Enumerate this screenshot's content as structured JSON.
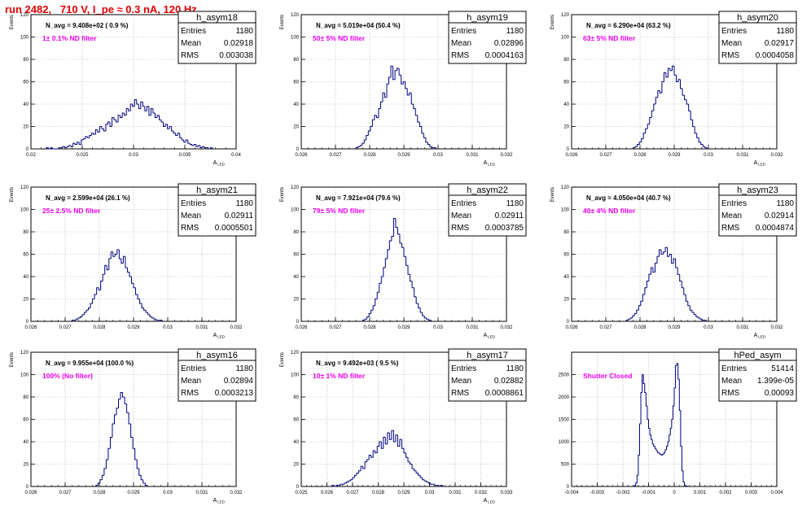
{
  "canvas_title": "run 2482,   710 V, I_pe ≈ 0.3 nA, 120 Hz",
  "chart_data": [
    {
      "type": "bar",
      "name": "h_asym18",
      "ylabel": "Events",
      "xlabel": "A_LED",
      "ylim": [
        0,
        120
      ],
      "xlim": [
        0.02,
        0.04
      ],
      "xticks": [
        "0.02",
        "0.025",
        "0.03",
        "0.035",
        "0.04"
      ],
      "yticks": [
        "0",
        "20",
        "40",
        "60",
        "80",
        "100",
        "120"
      ],
      "stats": {
        "title": "h_asym18",
        "entries": "1180",
        "mean": "0.02918",
        "rms": "0.003038"
      },
      "navg": "N_avg = 9.408e+02 ( 0.9 %)",
      "filter": "1± 0.1% ND filter",
      "bin_start": 0.0215,
      "bin_width": 0.0002,
      "values": [
        1,
        0,
        1,
        0,
        0,
        0,
        1,
        1,
        2,
        1,
        2,
        3,
        2,
        5,
        4,
        6,
        4,
        8,
        9,
        11,
        10,
        12,
        14,
        13,
        17,
        15,
        20,
        18,
        16,
        22,
        24,
        20,
        28,
        26,
        24,
        30,
        28,
        32,
        30,
        36,
        34,
        40,
        38,
        44,
        40,
        36,
        42,
        38,
        34,
        38,
        30,
        36,
        32,
        28,
        30,
        26,
        24,
        20,
        22,
        18,
        20,
        16,
        14,
        12,
        14,
        10,
        8,
        6,
        8,
        5,
        4,
        3,
        4,
        2,
        3,
        1,
        2,
        1,
        1,
        0,
        1
      ]
    },
    {
      "type": "bar",
      "name": "h_asym19",
      "ylabel": "Events",
      "xlabel": "A_LED",
      "ylim": [
        0,
        120
      ],
      "xlim": [
        0.026,
        0.032
      ],
      "xticks": [
        "0.026",
        "0.027",
        "0.028",
        "0.029",
        "0.03",
        "0.031",
        "0.032"
      ],
      "yticks": [
        "0",
        "20",
        "40",
        "60",
        "80",
        "100",
        "120"
      ],
      "stats": {
        "title": "h_asym19",
        "entries": "1180",
        "mean": "0.02896",
        "rms": "0.0004163"
      },
      "navg": "N_avg = 5.019e+04 (50.4 %)",
      "filter": "50± 5% ND filter",
      "bin_start": 0.0276,
      "bin_width": 6e-05,
      "values": [
        1,
        2,
        3,
        5,
        8,
        12,
        16,
        20,
        26,
        30,
        28,
        36,
        42,
        50,
        46,
        58,
        64,
        74,
        62,
        70,
        72,
        66,
        58,
        60,
        54,
        48,
        50,
        40,
        36,
        30,
        24,
        20,
        14,
        10,
        6,
        4,
        2,
        1,
        1
      ]
    },
    {
      "type": "bar",
      "name": "h_asym20",
      "ylabel": "Events",
      "xlabel": "A_LED",
      "ylim": [
        0,
        120
      ],
      "xlim": [
        0.026,
        0.032
      ],
      "xticks": [
        "0.026",
        "0.027",
        "0.028",
        "0.029",
        "0.03",
        "0.031",
        "0.032"
      ],
      "yticks": [
        "0",
        "20",
        "40",
        "60",
        "80",
        "100",
        "120"
      ],
      "stats": {
        "title": "h_asym20",
        "entries": "1180",
        "mean": "0.02917",
        "rms": "0.0004058"
      },
      "navg": "N_avg = 6.290e+04 (63.2 %)",
      "filter": "63± 5% ND filter",
      "bin_start": 0.0278,
      "bin_width": 6e-05,
      "values": [
        1,
        2,
        4,
        6,
        9,
        14,
        18,
        22,
        28,
        34,
        40,
        46,
        52,
        50,
        60,
        68,
        64,
        72,
        70,
        74,
        66,
        60,
        62,
        54,
        48,
        44,
        40,
        34,
        26,
        20,
        14,
        10,
        6,
        4,
        2,
        1
      ]
    },
    {
      "type": "bar",
      "name": "h_asym21",
      "ylabel": "Events",
      "xlabel": "A_LED",
      "ylim": [
        0,
        120
      ],
      "xlim": [
        0.026,
        0.032
      ],
      "xticks": [
        "0.026",
        "0.027",
        "0.028",
        "0.029",
        "0.03",
        "0.031",
        "0.032"
      ],
      "yticks": [
        "0",
        "20",
        "40",
        "60",
        "80",
        "100",
        "120"
      ],
      "stats": {
        "title": "h_asym21",
        "entries": "1180",
        "mean": "0.02911",
        "rms": "0.0005501"
      },
      "navg": "N_avg = 2.599e+04 (26.1 %)",
      "filter": "25± 2.5% ND filter",
      "bin_start": 0.0272,
      "bin_width": 6e-05,
      "values": [
        1,
        1,
        2,
        3,
        4,
        6,
        8,
        10,
        12,
        16,
        20,
        24,
        30,
        28,
        36,
        42,
        50,
        46,
        56,
        62,
        58,
        60,
        64,
        56,
        52,
        58,
        48,
        44,
        40,
        34,
        30,
        24,
        20,
        16,
        12,
        10,
        8,
        6,
        4,
        3,
        2,
        1,
        1,
        1
      ]
    },
    {
      "type": "bar",
      "name": "h_asym22",
      "ylabel": "Events",
      "xlabel": "A_LED",
      "ylim": [
        0,
        120
      ],
      "xlim": [
        0.026,
        0.032
      ],
      "xticks": [
        "0.026",
        "0.027",
        "0.028",
        "0.029",
        "0.03",
        "0.031",
        "0.032"
      ],
      "yticks": [
        "0",
        "20",
        "40",
        "60",
        "80",
        "100",
        "120"
      ],
      "stats": {
        "title": "h_asym22",
        "entries": "1180",
        "mean": "0.02911",
        "rms": "0.0003785"
      },
      "navg": "N_avg = 7.921e+04 (79.6 %)",
      "filter": "79± 5% ND filter",
      "bin_start": 0.0278,
      "bin_width": 6e-05,
      "values": [
        1,
        2,
        4,
        7,
        10,
        14,
        20,
        26,
        34,
        40,
        48,
        56,
        64,
        72,
        76,
        92,
        84,
        78,
        70,
        66,
        58,
        50,
        42,
        36,
        30,
        22,
        16,
        12,
        8,
        5,
        3,
        2,
        1
      ]
    },
    {
      "type": "bar",
      "name": "h_asym23",
      "ylabel": "Events",
      "xlabel": "A_LED",
      "ylim": [
        0,
        120
      ],
      "xlim": [
        0.026,
        0.032
      ],
      "xticks": [
        "0.026",
        "0.027",
        "0.028",
        "0.029",
        "0.03",
        "0.031",
        "0.032"
      ],
      "yticks": [
        "0",
        "20",
        "40",
        "60",
        "80",
        "100",
        "120"
      ],
      "stats": {
        "title": "h_asym23",
        "entries": "1180",
        "mean": "0.02914",
        "rms": "0.0004874"
      },
      "navg": "N_avg = 4.050e+04 (40.7 %)",
      "filter": "40± 4% ND filter",
      "bin_start": 0.0276,
      "bin_width": 6e-05,
      "values": [
        1,
        2,
        3,
        5,
        7,
        10,
        14,
        18,
        24,
        30,
        36,
        42,
        48,
        44,
        52,
        58,
        64,
        60,
        62,
        66,
        58,
        60,
        52,
        56,
        48,
        42,
        36,
        30,
        24,
        18,
        14,
        10,
        8,
        6,
        4,
        3,
        2,
        1,
        1
      ]
    },
    {
      "type": "bar",
      "name": "h_asym16",
      "ylabel": "Events",
      "xlabel": "A_LED",
      "ylim": [
        0,
        120
      ],
      "xlim": [
        0.026,
        0.032
      ],
      "xticks": [
        "0.026",
        "0.027",
        "0.028",
        "0.029",
        "0.03",
        "0.031",
        "0.032"
      ],
      "yticks": [
        "0",
        "20",
        "40",
        "60",
        "80",
        "100",
        "120"
      ],
      "stats": {
        "title": "h_asym16",
        "entries": "1180",
        "mean": "0.02894",
        "rms": "0.0003213"
      },
      "navg": "N_avg = 9.955e+04 (100.0 %)",
      "filter": "100% (No filter)",
      "bin_start": 0.0279,
      "bin_width": 6e-05,
      "values": [
        1,
        3,
        6,
        10,
        16,
        24,
        34,
        44,
        56,
        64,
        70,
        78,
        84,
        80,
        74,
        66,
        56,
        44,
        34,
        24,
        16,
        10,
        6,
        3,
        1
      ]
    },
    {
      "type": "bar",
      "name": "h_asym17",
      "ylabel": "Events",
      "xlabel": "A_LED",
      "ylim": [
        0,
        120
      ],
      "xlim": [
        0.025,
        0.033
      ],
      "xticks": [
        "0.025",
        "0.026",
        "0.027",
        "0.028",
        "0.029",
        "0.03",
        "0.031",
        "0.032",
        "0.033"
      ],
      "yticks": [
        "0",
        "20",
        "40",
        "60",
        "80",
        "100",
        "120"
      ],
      "stats": {
        "title": "h_asym17",
        "entries": "1180",
        "mean": "0.02882",
        "rms": "0.0008861"
      },
      "navg": "N_avg = 9.492e+03 ( 9.5 %)",
      "filter": "10± 1% ND filter",
      "bin_start": 0.0262,
      "bin_width": 8e-05,
      "values": [
        1,
        0,
        1,
        1,
        2,
        2,
        3,
        4,
        5,
        6,
        8,
        10,
        12,
        14,
        18,
        16,
        22,
        24,
        28,
        26,
        32,
        30,
        36,
        40,
        34,
        44,
        38,
        48,
        42,
        50,
        40,
        46,
        36,
        42,
        34,
        30,
        26,
        22,
        20,
        16,
        14,
        12,
        10,
        8,
        6,
        5,
        4,
        3,
        2,
        2,
        1,
        1,
        0,
        1
      ]
    },
    {
      "type": "bar",
      "name": "hPed_asym",
      "ylabel": "",
      "xlabel": "",
      "ylim": [
        0,
        3000
      ],
      "xlim": [
        -0.004,
        0.004
      ],
      "xticks": [
        "-0.004",
        "-0.003",
        "-0.002",
        "-0.001",
        "0",
        "0.001",
        "0.002",
        "0.003",
        "0.004"
      ],
      "yticks": [
        "0",
        "500",
        "1000",
        "1500",
        "2000",
        "2500"
      ],
      "stats": {
        "title": "hPed_asym",
        "entries": "51414",
        "mean": "1.399e-05",
        "rms": "0.00093"
      },
      "navg": "",
      "filter": "Shutter Closed",
      "bin_start": -0.0016,
      "bin_width": 5e-05,
      "values": [
        5,
        20,
        80,
        250,
        700,
        1400,
        2100,
        2500,
        2300,
        2100,
        1800,
        1500,
        1300,
        1150,
        1050,
        950,
        900,
        850,
        800,
        760,
        740,
        720,
        700,
        720,
        760,
        820,
        900,
        1000,
        1150,
        1300,
        1500,
        1800,
        2200,
        2700,
        2750,
        2400,
        1700,
        900,
        350,
        100,
        30,
        10,
        5
      ]
    }
  ]
}
